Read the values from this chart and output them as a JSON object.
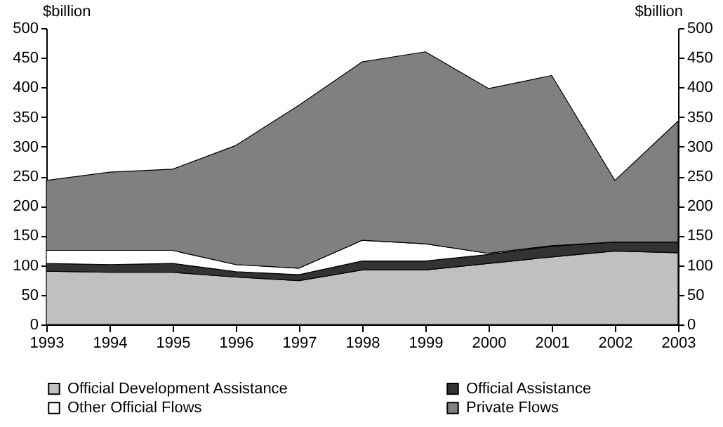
{
  "chart_data": {
    "type": "area",
    "stacked": true,
    "ylabel": "$billion",
    "y2label": "$billion",
    "x": [
      1993,
      1994,
      1995,
      1996,
      1997,
      1998,
      1999,
      2000,
      2001,
      2002,
      2003
    ],
    "xlim": [
      1993,
      2003
    ],
    "xticks": [
      1993,
      1994,
      1995,
      1996,
      1997,
      1998,
      1999,
      2000,
      2001,
      2002,
      2003
    ],
    "ylim": [
      0,
      500
    ],
    "yticks": [
      0,
      50,
      100,
      150,
      200,
      250,
      300,
      350,
      400,
      450,
      500
    ],
    "y2lim": [
      0,
      500
    ],
    "y2ticks": [
      0,
      50,
      100,
      150,
      200,
      250,
      300,
      350,
      400,
      450,
      500
    ],
    "grid": false,
    "legend": "bottom",
    "series": [
      {
        "name": "Official Development Assistance",
        "color": "#c0c0c0",
        "values": [
          90,
          88,
          88,
          80,
          74,
          92,
          92,
          103,
          114,
          124,
          121
        ]
      },
      {
        "name": "Official Assistance",
        "color": "#333333",
        "values": [
          13,
          13,
          15,
          9,
          10,
          15,
          15,
          15,
          18,
          15,
          18
        ]
      },
      {
        "name": "Other Official Flows",
        "color": "#ffffff",
        "values": [
          22,
          24,
          22,
          12,
          11,
          35,
          29,
          2,
          1,
          0,
          0
        ]
      },
      {
        "name": "Private Flows",
        "color": "#808080",
        "values": [
          118,
          132,
          137,
          201,
          275,
          301,
          324,
          278,
          287,
          104,
          204
        ]
      }
    ]
  }
}
